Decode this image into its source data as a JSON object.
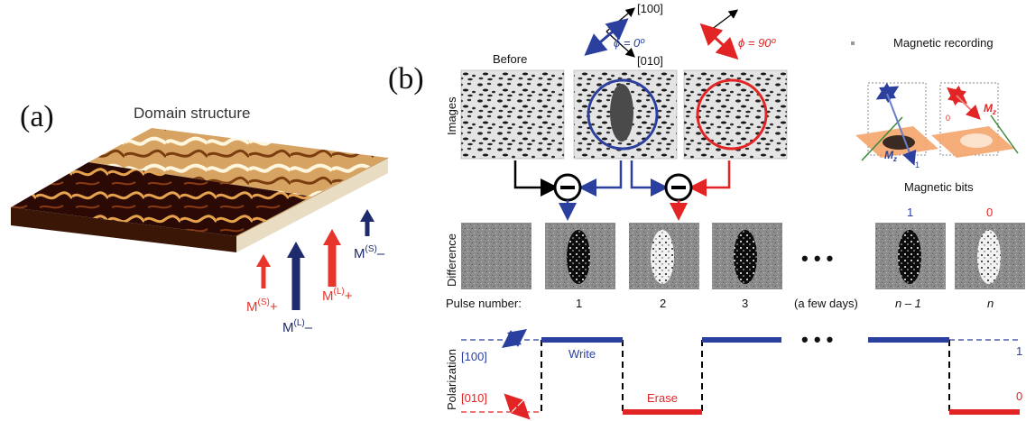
{
  "panel_a": {
    "label": "(a)",
    "title": "Domain structure",
    "arrows": {
      "ms_plus": {
        "base": "M",
        "sup": "(S)",
        "sign": "+",
        "color": "#e8352c"
      },
      "ml_minus": {
        "base": "M",
        "sup": "(L)",
        "sign": "–",
        "color": "#1d2a6b"
      },
      "ml_plus": {
        "base": "M",
        "sup": "(L)",
        "sign": "+",
        "color": "#e8352c"
      },
      "ms_minus": {
        "base": "M",
        "sup": "(S)",
        "sign": "–",
        "color": "#1d2a6b"
      }
    }
  },
  "panel_b": {
    "label": "(b)",
    "axis_100": "[100]",
    "axis_010": "[010]",
    "phi_0": "ϕ = 0º",
    "phi_90": "ϕ = 90º",
    "before_label": "Before",
    "images_label": "Images",
    "difference_label": "Difference",
    "polarization_label": "Polarization",
    "magnetic_recording_title": "Magnetic recording",
    "magnetic_bits_label": "Magnetic bits",
    "mz_label": "M",
    "mz_sub": "z",
    "bit_small_labels": {
      "left": "1",
      "right": "0"
    },
    "bit_values": {
      "one": "1",
      "zero": "0"
    },
    "pulse_label": "Pulse number:",
    "pulses": [
      "1",
      "2",
      "3",
      "(a few days)",
      "n – 1",
      "n"
    ],
    "ellipsis": "• • •",
    "pol_100": "[100]",
    "pol_010": "[010]",
    "write_label": "Write",
    "erase_label": "Erase",
    "pol_right_top": "1",
    "pol_right_bottom": "0",
    "colors": {
      "blue": "#2b3f9e",
      "red": "#e32424",
      "orange": "#f4a46a"
    }
  }
}
